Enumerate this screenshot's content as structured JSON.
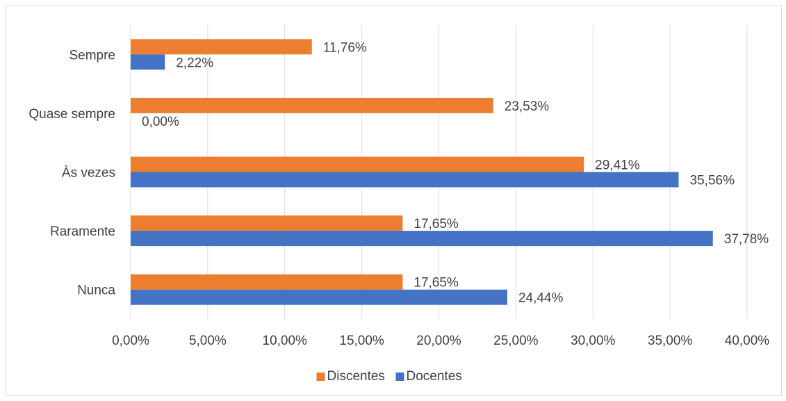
{
  "chart_data": {
    "type": "bar",
    "orientation": "horizontal",
    "categories": [
      "Nunca",
      "Raramente",
      "Às vezes",
      "Quase sempre",
      "Sempre"
    ],
    "series": [
      {
        "name": "Discentes",
        "color": "#ED7D31",
        "values": [
          17.65,
          17.65,
          29.41,
          23.53,
          11.76
        ],
        "labels": [
          "17,65%",
          "17,65%",
          "29,41%",
          "23,53%",
          "11,76%"
        ]
      },
      {
        "name": "Docentes",
        "color": "#4472C4",
        "values": [
          24.44,
          37.78,
          35.56,
          0.0,
          2.22
        ],
        "labels": [
          "24,44%",
          "37,78%",
          "35,56%",
          "0,00%",
          "2,22%"
        ]
      }
    ],
    "xlim": [
      0,
      40
    ],
    "xticks": [
      0,
      5,
      10,
      15,
      20,
      25,
      30,
      35,
      40
    ],
    "xtick_labels": [
      "0,00%",
      "5,00%",
      "10,00%",
      "15,00%",
      "20,00%",
      "25,00%",
      "30,00%",
      "35,00%",
      "40,00%"
    ],
    "grid": true,
    "legend_position": "bottom",
    "title": "",
    "xlabel": "",
    "ylabel": ""
  }
}
